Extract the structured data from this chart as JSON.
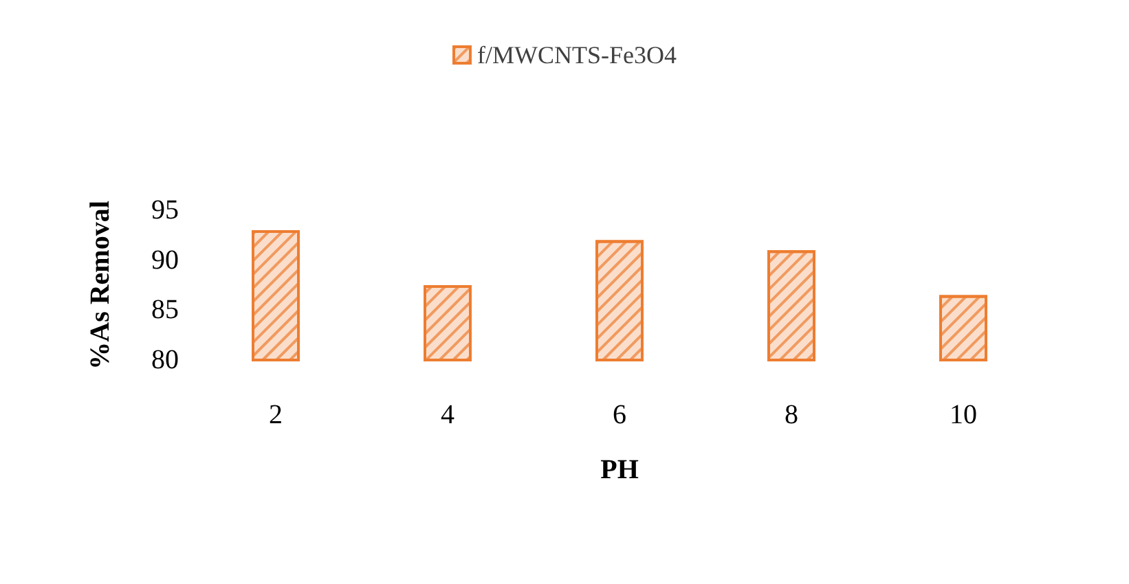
{
  "chart_data": {
    "type": "bar",
    "categories": [
      "2",
      "4",
      "6",
      "8",
      "10"
    ],
    "series": [
      {
        "name": "f/MWCNTS-Fe3O4",
        "color": "#ed7d31",
        "values": [
          93,
          87.5,
          92,
          91,
          86.5
        ]
      }
    ],
    "xlabel": "PH",
    "ylabel": "%As Removal",
    "ylim": [
      80,
      95
    ],
    "yticks": [
      80,
      85,
      90,
      95
    ],
    "grid": false,
    "legend": "top"
  }
}
